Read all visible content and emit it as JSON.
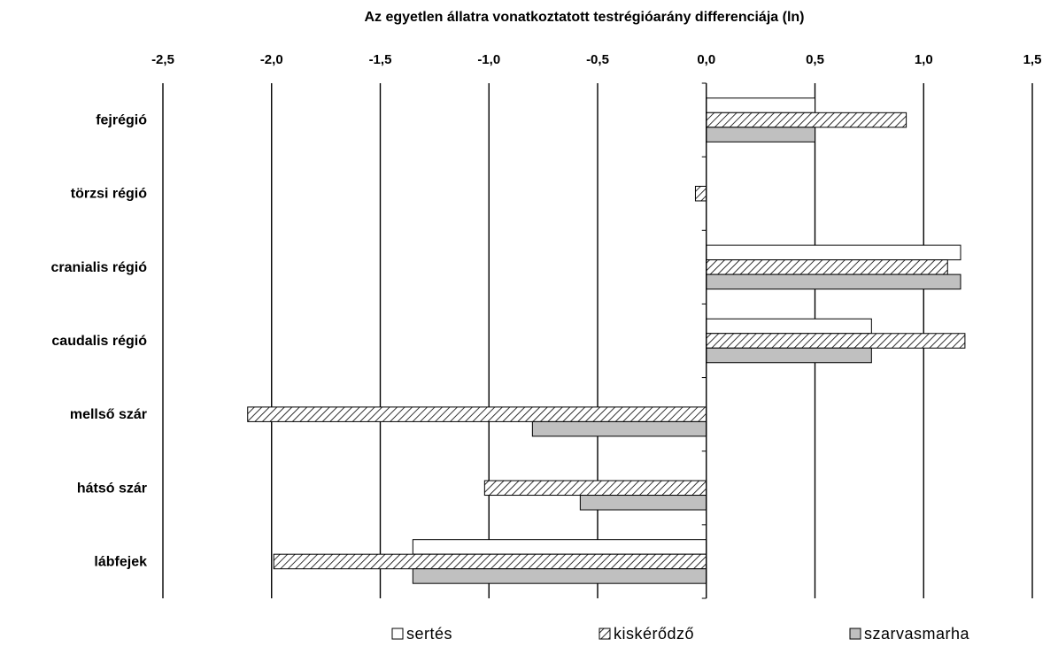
{
  "chart_data": {
    "type": "bar",
    "orientation": "horizontal",
    "title": "Az egyetlen állatra vonatkoztatott testrégióarány differenciája (ln)",
    "categories": [
      "fejrégió",
      "törzsi régió",
      "cranialis régió",
      "caudalis régió",
      "mellső szár",
      "hátsó szár",
      "lábfejek"
    ],
    "xlim": [
      -2.5,
      1.5
    ],
    "xticks": [
      -2.5,
      -2.0,
      -1.5,
      -1.0,
      -0.5,
      0.0,
      0.5,
      1.0,
      1.5
    ],
    "xtick_labels": [
      "-2,5",
      "-2,0",
      "-1,5",
      "-1,0",
      "-0,5",
      "0,0",
      "0,5",
      "1,0",
      "1,5"
    ],
    "grid": "vertical lines at major ticks",
    "legend_position": "bottom",
    "series": [
      {
        "name": "sertés",
        "style": "white",
        "values": [
          0.5,
          0,
          1.17,
          0.76,
          0,
          0,
          -1.35
        ]
      },
      {
        "name": "kiskérődző",
        "style": "hatched",
        "values": [
          0.92,
          -0.05,
          1.11,
          1.19,
          -2.11,
          -1.02,
          -1.99
        ]
      },
      {
        "name": "szarvasmarha",
        "style": "gray",
        "values": [
          0.5,
          0,
          1.17,
          0.76,
          -0.8,
          -0.58,
          -1.35
        ]
      }
    ],
    "colors": {
      "white": "#ffffff",
      "gray": "#c0c0c0",
      "stroke": "#000000"
    }
  }
}
